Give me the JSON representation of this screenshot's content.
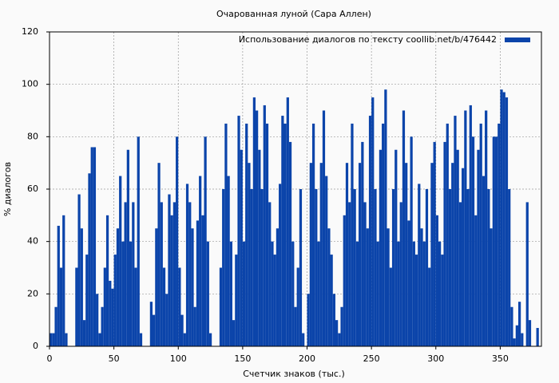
{
  "chart_data": {
    "type": "bar",
    "title": "Очарованная луной (Сара Аллен)",
    "x_label": "Счетчик знаков (тыс.)",
    "y_label": "% диалогов",
    "series": [
      {
        "name": "Использование диалогов по тексту  coollib.net/b/476442",
        "color": "#0b44aa",
        "values": [
          5,
          5,
          15,
          46,
          30,
          50,
          5,
          0,
          0,
          0,
          30,
          58,
          45,
          10,
          35,
          66,
          76,
          76,
          20,
          5,
          15,
          30,
          50,
          25,
          22,
          35,
          45,
          65,
          40,
          55,
          75,
          40,
          55,
          30,
          80,
          5,
          0,
          0,
          0,
          17,
          12,
          45,
          70,
          55,
          30,
          20,
          58,
          50,
          55,
          80,
          30,
          12,
          5,
          62,
          55,
          45,
          15,
          48,
          65,
          50,
          80,
          40,
          5,
          0,
          0,
          0,
          30,
          60,
          85,
          65,
          40,
          10,
          35,
          88,
          75,
          40,
          85,
          70,
          60,
          95,
          90,
          75,
          60,
          92,
          85,
          55,
          40,
          35,
          45,
          62,
          88,
          85,
          95,
          78,
          40,
          15,
          30,
          60,
          5,
          0,
          20,
          70,
          85,
          60,
          40,
          70,
          90,
          65,
          45,
          35,
          20,
          10,
          5,
          15,
          50,
          70,
          55,
          85,
          60,
          40,
          70,
          78,
          55,
          45,
          88,
          95,
          60,
          40,
          75,
          85,
          98,
          45,
          30,
          60,
          75,
          40,
          55,
          90,
          70,
          48,
          80,
          40,
          35,
          62,
          45,
          40,
          60,
          30,
          70,
          78,
          50,
          40,
          35,
          78,
          85,
          60,
          70,
          88,
          75,
          55,
          68,
          90,
          60,
          92,
          80,
          50,
          75,
          85,
          65,
          90,
          60,
          45,
          80,
          80,
          85,
          98,
          97,
          95,
          60,
          15,
          3,
          8,
          17,
          5,
          0,
          55,
          10,
          0,
          0,
          7,
          0
        ]
      }
    ],
    "x": [
      0,
      2,
      4,
      6,
      8,
      10,
      12,
      14,
      16,
      18,
      20,
      22,
      24,
      26,
      28,
      30,
      32,
      34,
      36,
      38,
      40,
      42,
      44,
      46,
      48,
      50,
      52,
      54,
      56,
      58,
      60,
      62,
      64,
      66,
      68,
      70,
      72,
      74,
      76,
      78,
      80,
      82,
      84,
      86,
      88,
      90,
      92,
      94,
      96,
      98,
      100,
      102,
      104,
      106,
      108,
      110,
      112,
      114,
      116,
      118,
      120,
      122,
      124,
      126,
      128,
      130,
      132,
      134,
      136,
      138,
      140,
      142,
      144,
      146,
      148,
      150,
      152,
      154,
      156,
      158,
      160,
      162,
      164,
      166,
      168,
      170,
      172,
      174,
      176,
      178,
      180,
      182,
      184,
      186,
      188,
      190,
      192,
      194,
      196,
      198,
      200,
      202,
      204,
      206,
      208,
      210,
      212,
      214,
      216,
      218,
      220,
      222,
      224,
      226,
      228,
      230,
      232,
      234,
      236,
      238,
      240,
      242,
      244,
      246,
      248,
      250,
      252,
      254,
      256,
      258,
      260,
      262,
      264,
      266,
      268,
      270,
      272,
      274,
      276,
      278,
      280,
      282,
      284,
      286,
      288,
      290,
      292,
      294,
      296,
      298,
      300,
      302,
      304,
      306,
      308,
      310,
      312,
      314,
      316,
      318,
      320,
      322,
      324,
      326,
      328,
      330,
      332,
      334,
      336,
      338,
      340,
      342,
      344,
      346,
      348,
      350,
      352,
      354,
      356,
      358,
      360,
      362,
      364,
      366,
      368,
      370,
      372,
      374,
      376,
      378,
      380
    ],
    "xlim": [
      0,
      382
    ],
    "xticks": [
      0,
      50,
      100,
      150,
      200,
      250,
      300,
      350
    ],
    "ylim": [
      0,
      120
    ],
    "yticks": [
      0,
      20,
      40,
      60,
      80,
      100,
      120
    ],
    "grid": true,
    "legend": "upper right"
  }
}
